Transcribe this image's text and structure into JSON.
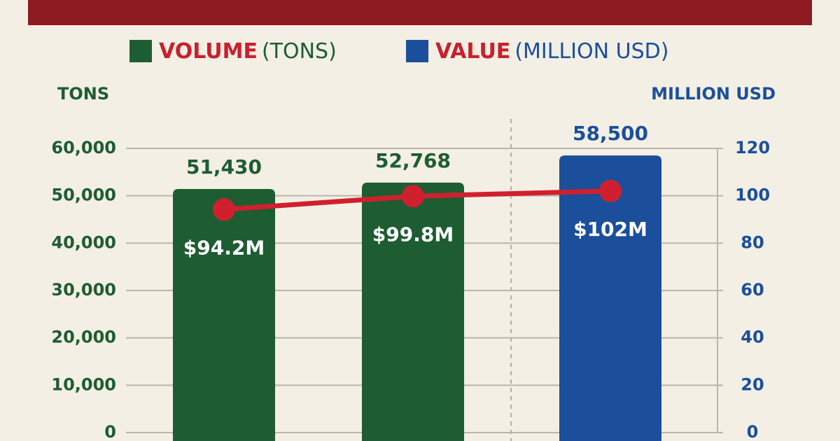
{
  "chart_data": {
    "type": "bar-line",
    "legend": [
      {
        "name": "VOLUME",
        "unit": "(TONS)",
        "color": "#1e5c32"
      },
      {
        "name": "VALUE",
        "unit": "(MILLION USD)",
        "color": "#1b4f9b"
      }
    ],
    "y_label": "TONS",
    "y2_label": "MILLION USD",
    "categories": [
      null,
      null,
      null
    ],
    "series": [
      {
        "values": [
          51430,
          52768,
          58500
        ],
        "value_labels": [
          "51,430",
          "52,768",
          "58,500"
        ],
        "colors": [
          "#1e5c32",
          "#1e5c32",
          "#1b4f9b"
        ],
        "label_colors": [
          "#1e5c32",
          "#1e5c32",
          "#1b4f9b"
        ]
      },
      {
        "axis": "y2",
        "color": "#d0202e",
        "values": [
          94.2,
          99.8,
          102
        ],
        "value_labels": [
          "$94.2M",
          "$99.8M",
          "$102M"
        ]
      }
    ],
    "ylim": [
      0,
      60000
    ],
    "yticks": [
      0,
      {
        "value": 10000,
        "label": "10,000"
      },
      {
        "value": 20000,
        "label": "20,000"
      },
      {
        "value": 30000,
        "label": "30,000"
      },
      {
        "value": 40000,
        "label": "40,000"
      },
      {
        "value": 50000,
        "label": "50,000"
      },
      {
        "value": 60000,
        "label": "60,000"
      }
    ],
    "y2lim": [
      0,
      120
    ],
    "y2ticks": [
      0,
      20,
      40,
      60,
      80,
      100,
      120
    ],
    "grid": true
  }
}
